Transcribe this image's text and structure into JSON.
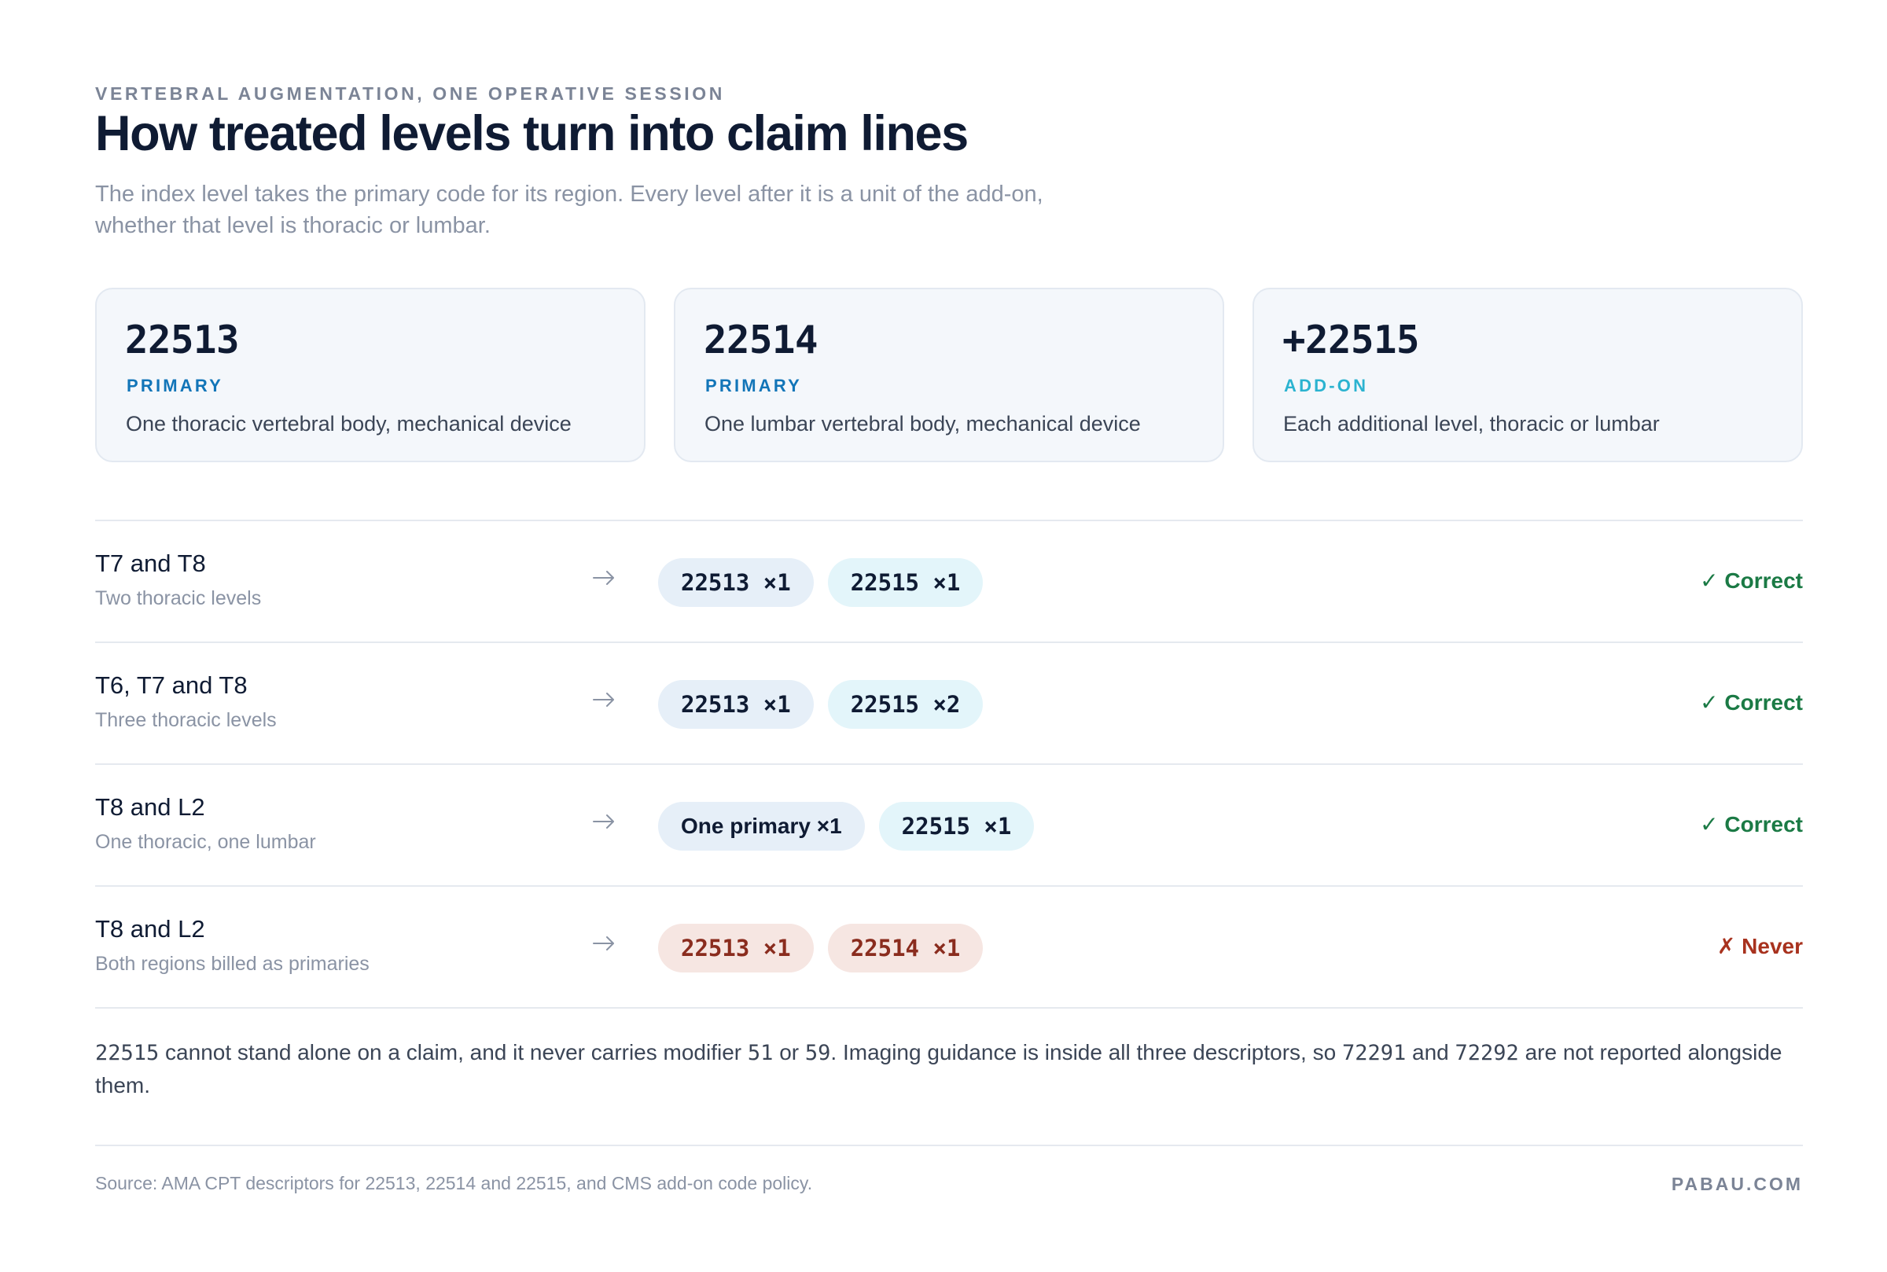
{
  "header": {
    "eyebrow": "VERTEBRAL AUGMENTATION, ONE OPERATIVE SESSION",
    "title": "How treated levels turn into claim lines",
    "lede": "The index level takes the primary code for its region. Every level after it is a unit of the add-on, whether that level is thoracic or lumbar."
  },
  "cards": [
    {
      "code": "22513",
      "kind": "PRIMARY",
      "desc": "One thoracic vertebral body, mechanical device",
      "kind_color": "#1275b8"
    },
    {
      "code": "22514",
      "kind": "PRIMARY",
      "desc": "One lumbar vertebral body, mechanical device",
      "kind_color": "#1275b8"
    },
    {
      "code": "+22515",
      "kind": "ADD-ON",
      "desc": "Each additional level, thoracic or lumbar",
      "kind_color": "#2bb3d0"
    }
  ],
  "rows": [
    {
      "levels": "T7 and T8",
      "detail": "Two thoracic levels",
      "pill1": "22513 ×1",
      "pill2": "22515 ×1",
      "verdict": "✓ Correct",
      "status": "correct"
    },
    {
      "levels": "T6, T7 and T8",
      "detail": "Three thoracic levels",
      "pill1": "22513 ×1",
      "pill2": "22515 ×2",
      "verdict": "✓ Correct",
      "status": "correct"
    },
    {
      "levels": "T8 and L2",
      "detail": "One thoracic, one lumbar",
      "pill1": "One primary ×1",
      "pill2": "22515 ×1",
      "verdict": "✓ Correct",
      "status": "correct"
    },
    {
      "levels": "T8 and L2",
      "detail": "Both regions billed as primaries",
      "pill1": "22513 ×1",
      "pill2": "22514 ×1",
      "verdict": "✗ Never",
      "status": "never"
    }
  ],
  "note": {
    "c1": "22515",
    "t1": " cannot stand alone on a claim, and it never carries modifier ",
    "c2": "51",
    "t2": " or ",
    "c3": "59",
    "t3": ". Imaging guidance is inside all three descriptors, so ",
    "c4": "72291",
    "t4": " and ",
    "c5": "72292",
    "t5": " are not reported alongside them."
  },
  "footer": {
    "s1": "Source: AMA CPT descriptors for ",
    "c1": "22513",
    "s2": ", ",
    "c2": "22514",
    "s3": " and ",
    "c3": "22515",
    "s4": ", and CMS add-on code policy.",
    "brand": "PABAU.COM"
  },
  "icons": {
    "arrow": "arrow-right-icon"
  }
}
